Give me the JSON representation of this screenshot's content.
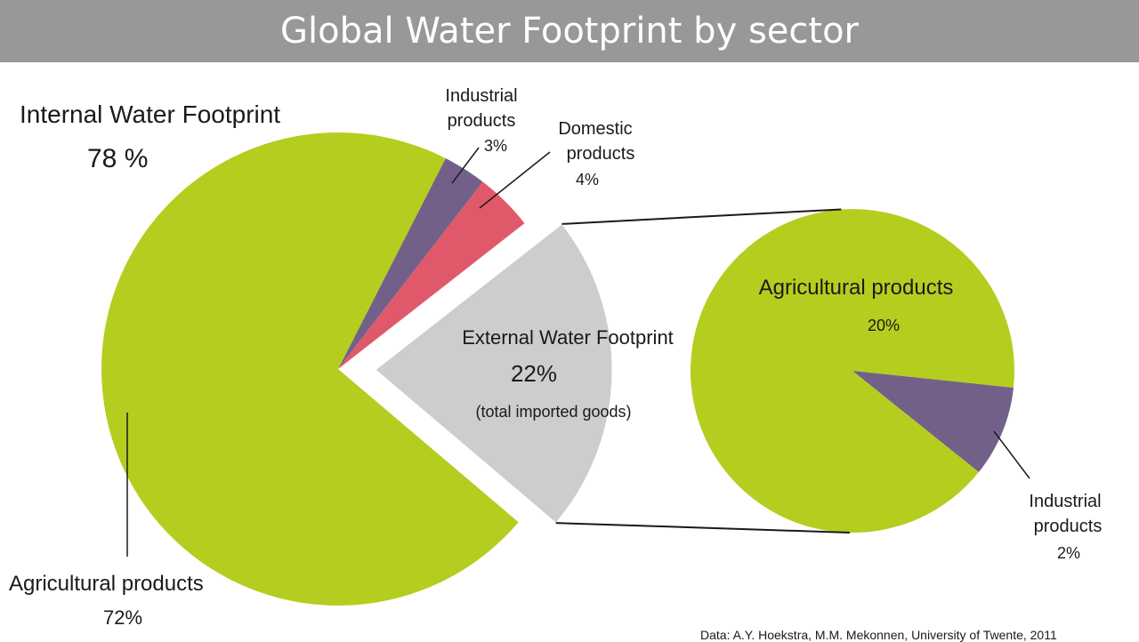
{
  "title": "Global Water Footprint by sector",
  "source": "Data: A.Y. Hoekstra, M.M. Mekonnen, University of Twente, 2011",
  "colors": {
    "agricultural": "#b5cd1f",
    "industrial": "#736089",
    "domestic": "#e0596a",
    "external": "#cdcdcd",
    "title_bar": "#989898"
  },
  "chart_data": [
    {
      "type": "pie",
      "name": "Global Water Footprint",
      "groups": [
        {
          "label": "Internal Water Footprint",
          "value_text": "78 %",
          "value": 78
        },
        {
          "label": "External Water Footprint",
          "value_text": "22%",
          "value": 22,
          "note": "(total imported goods)"
        }
      ],
      "slices": [
        {
          "label": "Agricultural products",
          "value": 72,
          "value_text": "72%",
          "color_key": "agricultural"
        },
        {
          "label": "Industrial products",
          "value": 3,
          "value_text": "3%",
          "color_key": "industrial"
        },
        {
          "label": "Domestic products",
          "value": 4,
          "value_text": "4%",
          "color_key": "domestic"
        },
        {
          "label": "External Water Footprint",
          "value": 22,
          "value_text": "22%",
          "color_key": "external"
        }
      ]
    },
    {
      "type": "pie",
      "name": "External Water Footprint breakdown",
      "slices": [
        {
          "label": "Agricultural products",
          "value": 20,
          "value_text": "20%",
          "color_key": "agricultural"
        },
        {
          "label": "Industrial products",
          "value": 2,
          "value_text": "2%",
          "color_key": "industrial"
        }
      ]
    }
  ]
}
